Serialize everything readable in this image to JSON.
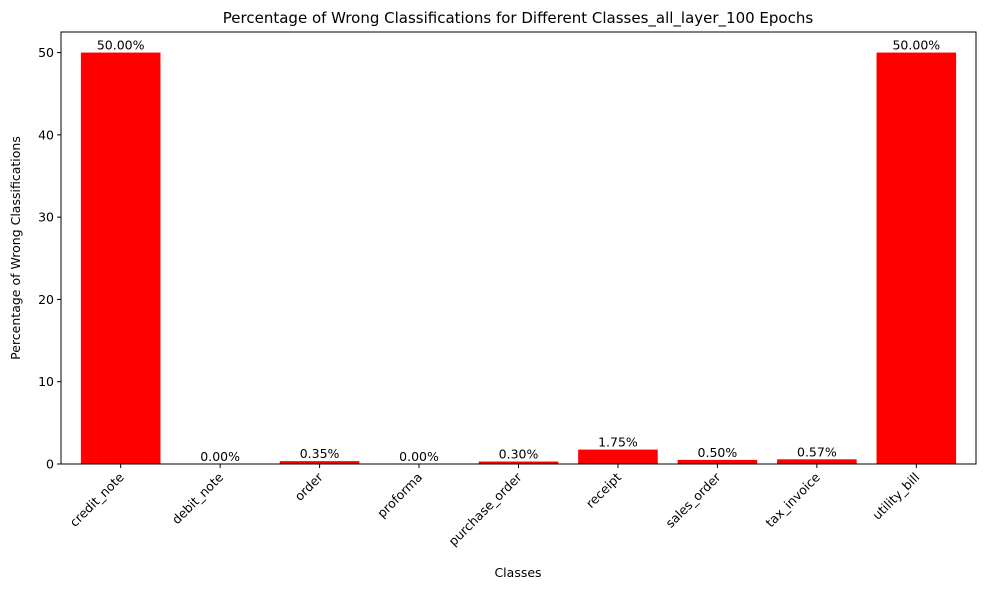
{
  "chart_data": {
    "type": "bar",
    "title": "Percentage of Wrong Classifications for Different Classes_all_layer_100 Epochs",
    "xlabel": "Classes",
    "ylabel": "Percentage of Wrong Classifications",
    "categories": [
      "credit_note",
      "debit_note",
      "order",
      "proforma",
      "purchase_order",
      "receipt",
      "sales_order",
      "tax_invoice",
      "utility_bill"
    ],
    "values": [
      50.0,
      0.0,
      0.35,
      0.0,
      0.3,
      1.75,
      0.5,
      0.57,
      50.0
    ],
    "data_labels": [
      "50.00%",
      "0.00%",
      "0.35%",
      "0.00%",
      "0.30%",
      "1.75%",
      "0.50%",
      "0.57%",
      "50.00%"
    ],
    "yticks": [
      0,
      10,
      20,
      30,
      40,
      50
    ],
    "ytick_labels": [
      "0",
      "10",
      "20",
      "30",
      "40",
      "50"
    ],
    "ylim": [
      0,
      52.5
    ],
    "bar_color": "#ff0000",
    "grid": false,
    "legend": "none"
  }
}
